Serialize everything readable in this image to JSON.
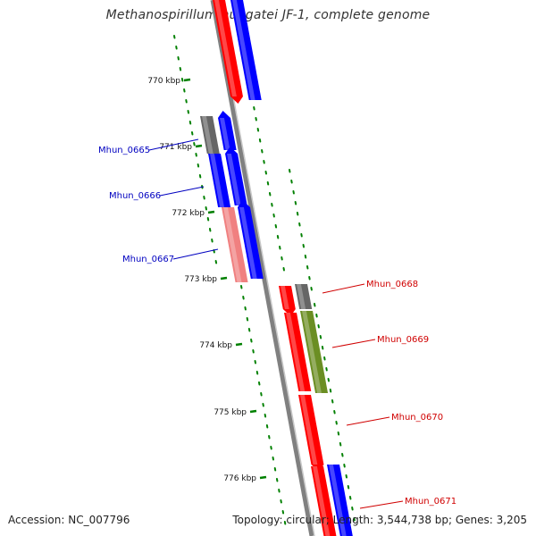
{
  "title": "Methanospirillum hungatei JF-1, complete genome",
  "accession": "Accession: NC_007796",
  "summary": "Topology: circular; Length: 3,544,738 bp; Genes: 3,205",
  "colors": {
    "backbone": "#808080",
    "tick": "#008000",
    "forward_gene": "#0000ff",
    "reverse_gene": "#ff0000",
    "pseudo_light_red": "#f08080",
    "grey_feature": "#666666",
    "olive_feature": "#6b8e23",
    "forward_label": "#0000c0",
    "reverse_label": "#d00000"
  },
  "ticks": [
    {
      "label": "770 kbp"
    },
    {
      "label": "771 kbp"
    },
    {
      "label": "772 kbp"
    },
    {
      "label": "773 kbp"
    },
    {
      "label": "774 kbp"
    },
    {
      "label": "775 kbp"
    },
    {
      "label": "776 kbp"
    }
  ],
  "gene_labels": [
    {
      "label": "Mhun_0665",
      "strand": "forward"
    },
    {
      "label": "Mhun_0666",
      "strand": "forward"
    },
    {
      "label": "Mhun_0667",
      "strand": "forward"
    },
    {
      "label": "Mhun_0668",
      "strand": "reverse"
    },
    {
      "label": "Mhun_0669",
      "strand": "reverse"
    },
    {
      "label": "Mhun_0670",
      "strand": "reverse"
    },
    {
      "label": "Mhun_0671",
      "strand": "reverse"
    }
  ]
}
